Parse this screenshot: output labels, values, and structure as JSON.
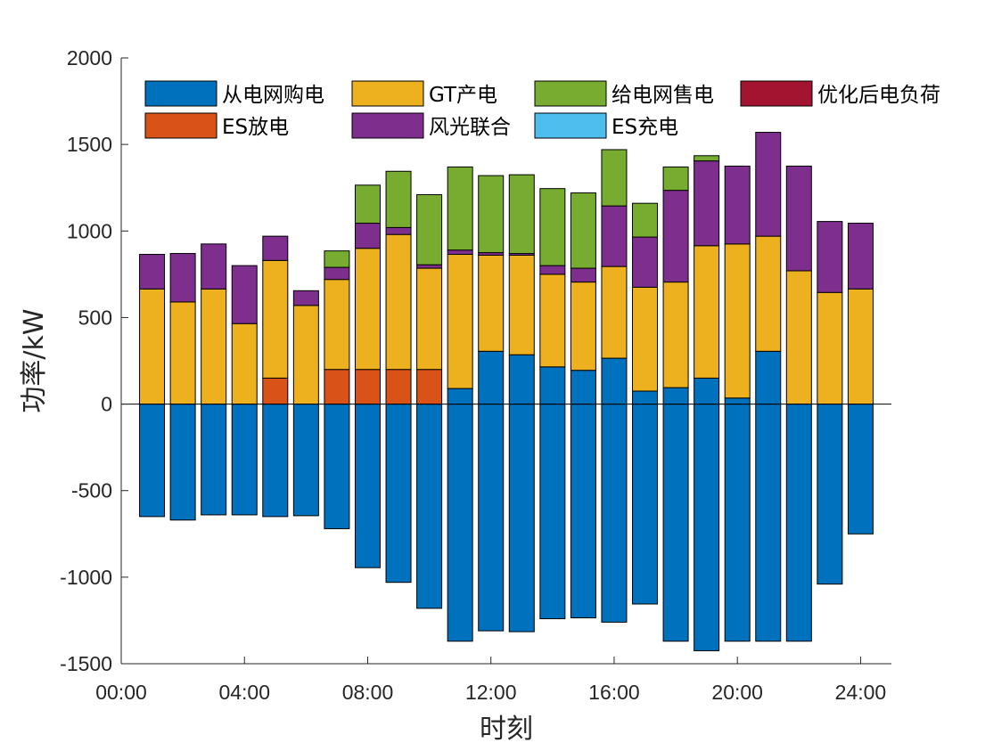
{
  "chart_data": {
    "type": "bar",
    "subtype": "stacked",
    "title": "",
    "xlabel": "时刻",
    "ylabel": "功率/kW",
    "ylim": [
      -1500,
      2000
    ],
    "yticks": [
      -1500,
      -1000,
      -500,
      0,
      500,
      1000,
      1500,
      2000
    ],
    "xlim": [
      0,
      25
    ],
    "xticks": [
      {
        "value": 0,
        "label": "00:00"
      },
      {
        "value": 4,
        "label": "04:00"
      },
      {
        "value": 8,
        "label": "08:00"
      },
      {
        "value": 12,
        "label": "12:00"
      },
      {
        "value": 16,
        "label": "16:00"
      },
      {
        "value": 20,
        "label": "20:00"
      },
      {
        "value": 24,
        "label": "24:00"
      }
    ],
    "x": [
      1,
      2,
      3,
      4,
      5,
      6,
      7,
      8,
      9,
      10,
      11,
      12,
      13,
      14,
      15,
      16,
      17,
      18,
      19,
      20,
      21,
      22,
      23,
      24
    ],
    "series": [
      {
        "name": "从电网购电",
        "color": "#0072BD",
        "values": [
          -650,
          -670,
          -640,
          -640,
          -650,
          -645,
          -720,
          -945,
          -1030,
          -1180,
          -1370,
          -1310,
          -1315,
          -1240,
          -1235,
          -1260,
          -1155,
          -1370,
          -1425,
          -1370,
          -1370,
          -1370,
          -1040,
          -750
        ],
        "positive_values": [
          0,
          0,
          0,
          0,
          0,
          0,
          0,
          0,
          0,
          0,
          90,
          305,
          285,
          215,
          195,
          265,
          75,
          95,
          150,
          35,
          305,
          0,
          0,
          0
        ]
      },
      {
        "name": "GT产电",
        "color": "#EDB120",
        "values": [
          665,
          590,
          665,
          465,
          680,
          570,
          520,
          700,
          780,
          585,
          775,
          555,
          575,
          535,
          510,
          530,
          600,
          610,
          765,
          890,
          665,
          770,
          645,
          665
        ]
      },
      {
        "name": "给电网售电",
        "color": "#77AC30",
        "values": [
          0,
          0,
          0,
          0,
          0,
          0,
          95,
          220,
          325,
          405,
          480,
          445,
          455,
          445,
          435,
          325,
          195,
          135,
          30,
          0,
          0,
          0,
          0,
          0
        ]
      },
      {
        "name": "优化后电负荷",
        "color": "#A2142F",
        "values": [
          0,
          0,
          0,
          0,
          0,
          0,
          0,
          0,
          0,
          0,
          0,
          0,
          0,
          0,
          0,
          0,
          0,
          0,
          0,
          0,
          0,
          0,
          0,
          0
        ]
      },
      {
        "name": "ES放电",
        "color": "#D95319",
        "values": [
          0,
          0,
          0,
          0,
          150,
          0,
          200,
          200,
          200,
          200,
          0,
          0,
          0,
          0,
          0,
          0,
          0,
          0,
          0,
          0,
          0,
          0,
          0,
          0
        ]
      },
      {
        "name": "风光联合",
        "color": "#7E2F8E",
        "values": [
          200,
          280,
          260,
          335,
          140,
          85,
          70,
          145,
          40,
          20,
          25,
          15,
          10,
          50,
          80,
          350,
          290,
          530,
          490,
          450,
          600,
          605,
          410,
          380
        ]
      },
      {
        "name": "ES充电",
        "color": "#4DBEEE",
        "values": [
          0,
          0,
          0,
          0,
          0,
          0,
          0,
          0,
          0,
          0,
          0,
          0,
          0,
          0,
          0,
          0,
          0,
          0,
          0,
          0,
          0,
          0,
          0,
          0
        ]
      }
    ],
    "stack_order_positive": [
      "从电网购电",
      "ES放电",
      "GT产电",
      "风光联合",
      "给电网售电"
    ],
    "legend": {
      "placement": "top-left",
      "entries": [
        "从电网购电",
        "GT产电",
        "给电网售电",
        "优化后电负荷",
        "ES放电",
        "风光联合",
        "ES充电"
      ]
    },
    "grid": false
  }
}
